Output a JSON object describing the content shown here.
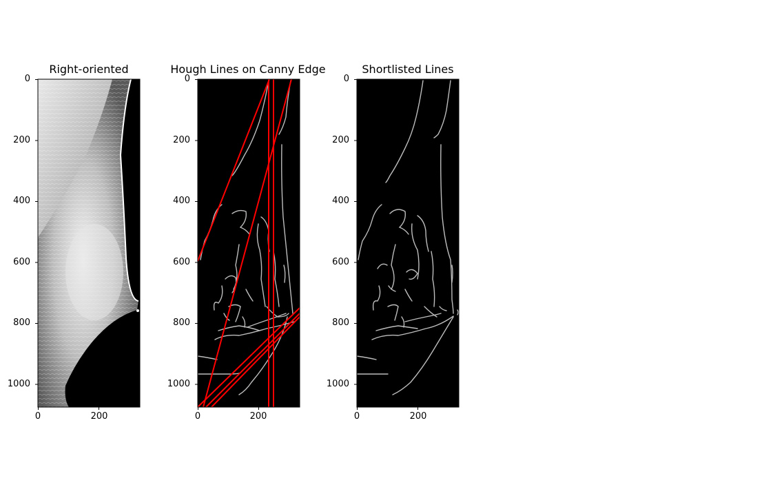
{
  "figure": {
    "background": "#ffffff",
    "panels": [
      {
        "id": "right-oriented",
        "title": "Right-oriented",
        "yticks": [
          "0",
          "200",
          "400",
          "600",
          "800",
          "1000"
        ],
        "xticks": [
          "0",
          "200"
        ],
        "image_kind": "grayscale-mammogram"
      },
      {
        "id": "hough-lines",
        "title": "Hough Lines on Canny Edge",
        "yticks": [
          "0",
          "200",
          "400",
          "600",
          "800",
          "1000"
        ],
        "xticks": [
          "0",
          "200"
        ],
        "image_kind": "canny-edges-with-red-hough-lines",
        "line_color": "#ff0000"
      },
      {
        "id": "shortlisted-lines",
        "title": "Shortlisted Lines",
        "yticks": [
          "0",
          "200",
          "400",
          "600",
          "800",
          "1000"
        ],
        "xticks": [
          "0",
          "200"
        ],
        "image_kind": "canny-edges"
      }
    ]
  }
}
